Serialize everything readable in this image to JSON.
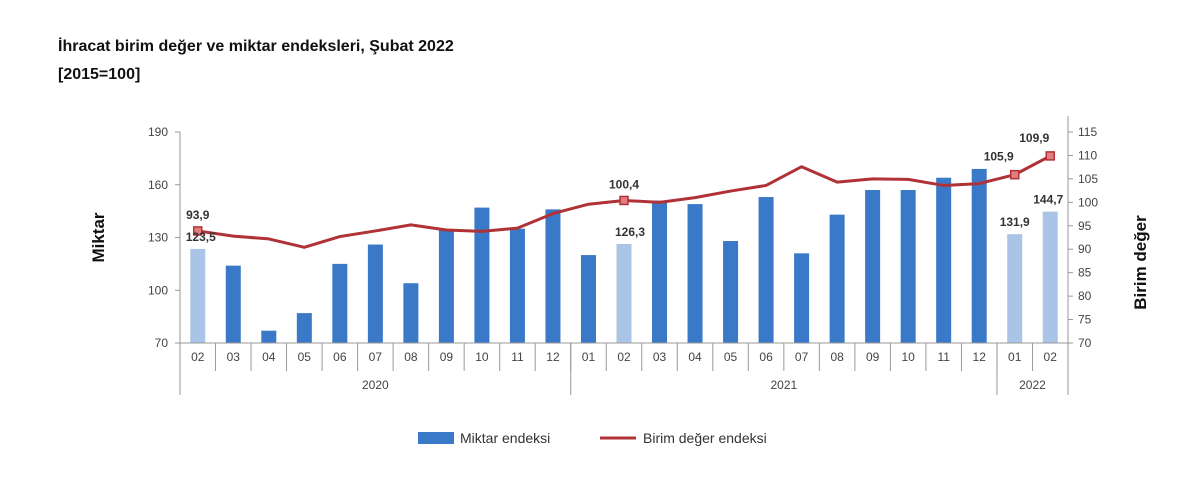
{
  "header": {
    "title": "İhracat birim değer ve miktar endeksleri, Şubat 2022",
    "subtitle": "[2015=100]"
  },
  "chart_data": {
    "type": "bar",
    "categories": [
      "02",
      "03",
      "04",
      "05",
      "06",
      "07",
      "08",
      "09",
      "10",
      "11",
      "12",
      "01",
      "02",
      "03",
      "04",
      "05",
      "06",
      "07",
      "08",
      "09",
      "10",
      "11",
      "12",
      "01",
      "02"
    ],
    "years": [
      {
        "label": "2020",
        "from": 0,
        "to": 10
      },
      {
        "label": "2021",
        "from": 11,
        "to": 22
      },
      {
        "label": "2022",
        "from": 23,
        "to": 24
      }
    ],
    "series": [
      {
        "name": "Miktar endeksi",
        "type": "bar",
        "axis": "left",
        "values": [
          123.5,
          114,
          77,
          87,
          115,
          126,
          104,
          134,
          147,
          135,
          146,
          120,
          126.3,
          151,
          149,
          128,
          153,
          121,
          143,
          157,
          157,
          164,
          169,
          131.9,
          144.7
        ],
        "highlight": [
          0,
          12,
          23,
          24
        ]
      },
      {
        "name": "Birim değer endeksi",
        "type": "line",
        "axis": "right",
        "values": [
          93.9,
          92.8,
          92.2,
          90.4,
          92.7,
          93.9,
          95.2,
          94.1,
          93.8,
          94.5,
          97.6,
          99.6,
          100.4,
          100.0,
          101.0,
          102.4,
          103.6,
          107.6,
          104.3,
          105.0,
          104.9,
          103.6,
          104.0,
          105.9,
          109.9
        ],
        "markers": [
          0,
          12,
          23,
          24
        ]
      }
    ],
    "data_labels": [
      {
        "series": 0,
        "index": 0,
        "text": "123,5"
      },
      {
        "series": 0,
        "index": 12,
        "text": "126,3"
      },
      {
        "series": 0,
        "index": 23,
        "text": "131,9"
      },
      {
        "series": 0,
        "index": 24,
        "text": "144,7"
      },
      {
        "series": 1,
        "index": 0,
        "text": "93,9"
      },
      {
        "series": 1,
        "index": 12,
        "text": "100,4"
      },
      {
        "series": 1,
        "index": 23,
        "text": "105,9"
      },
      {
        "series": 1,
        "index": 24,
        "text": "109,9"
      }
    ],
    "y_left": {
      "label": "Miktar",
      "min": 70,
      "max": 190,
      "ticks": [
        70,
        100,
        130,
        160,
        190
      ]
    },
    "y_right": {
      "label": "Birim değer",
      "min": 70,
      "max": 115,
      "ticks": [
        70,
        75,
        80,
        85,
        90,
        95,
        100,
        105,
        110,
        115
      ]
    },
    "colors": {
      "bar": "#3a78c8",
      "bar_highlight": "#a9c4e6",
      "line": "#b03236",
      "marker_fill": "#e47d7f",
      "axis": "#999999"
    },
    "legend_position": "bottom-center",
    "grid": false
  }
}
